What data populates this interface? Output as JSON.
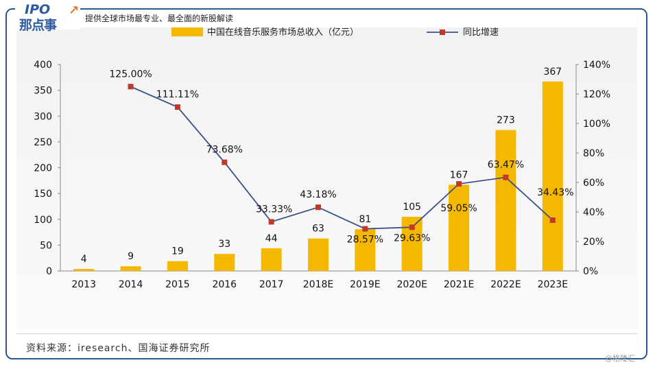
{
  "header": {
    "logo_line1": "IPO",
    "logo_line2": "那点事",
    "tagline": "提供全球市场最专业、最全面的新股解读"
  },
  "footer": {
    "source": "资料来源：iresearch、国海证券研究所",
    "watermark": "@格隆汇"
  },
  "chart_data": {
    "type": "bar",
    "categories": [
      "2013",
      "2014",
      "2015",
      "2016",
      "2017",
      "2018E",
      "2019E",
      "2020E",
      "2021E",
      "2022E",
      "2023E"
    ],
    "series": [
      {
        "name": "中国在线音乐服务市场总收入（亿元）",
        "type": "bar",
        "axis": "left",
        "color": "#f5b800",
        "values": [
          4,
          9,
          19,
          33,
          44,
          63,
          81,
          105,
          167,
          273,
          367
        ],
        "labels": [
          "4",
          "9",
          "19",
          "33",
          "44",
          "63",
          "81",
          "105",
          "167",
          "273",
          "367"
        ]
      },
      {
        "name": "同比增速",
        "type": "line",
        "axis": "right",
        "color": "#3a4f8a",
        "marker_color": "#c0392b",
        "values": [
          null,
          125.0,
          111.11,
          73.68,
          33.33,
          43.18,
          28.57,
          29.63,
          59.05,
          63.47,
          34.43
        ],
        "labels": [
          "",
          "125.00%",
          "111.11%",
          "73.68%",
          "33.33%",
          "43.18%",
          "28.57%",
          "29.63%",
          "59.05%",
          "63.47%",
          "34.43%"
        ]
      }
    ],
    "y_left": {
      "range": [
        0,
        400
      ],
      "ticks": [
        "0",
        "50",
        "100",
        "150",
        "200",
        "250",
        "300",
        "350",
        "400"
      ]
    },
    "y_right": {
      "range": [
        0,
        140
      ],
      "ticks": [
        "0%",
        "20%",
        "40%",
        "60%",
        "80%",
        "100%",
        "120%",
        "140%"
      ]
    },
    "legend_position": "top",
    "grid": false
  }
}
